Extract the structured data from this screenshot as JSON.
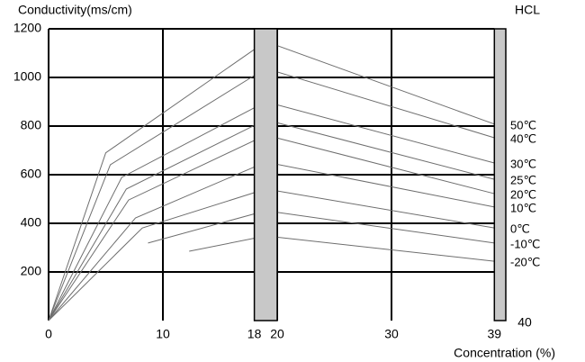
{
  "chart_data": {
    "type": "line",
    "title": "Conductivity(ms/cm)",
    "subtitle": "HCL",
    "x_label": "Concentration (%)",
    "annotation": "40",
    "xlim": [
      0,
      40
    ],
    "xticks": [
      0,
      10,
      18,
      20,
      30,
      39
    ],
    "ylim": [
      0,
      1200
    ],
    "yticks": [
      200,
      400,
      600,
      800,
      1000,
      1200
    ],
    "grid_x": [
      10,
      20,
      30
    ],
    "grid": true,
    "bands": [
      [
        18,
        20
      ],
      [
        39,
        40
      ]
    ],
    "band_color": "#c8c8c8",
    "series": [
      {
        "name": "50℃",
        "color": "#6e6e6e",
        "x": [
          0,
          5,
          19,
          39
        ],
        "values": [
          0,
          690,
          1148,
          808
        ]
      },
      {
        "name": "40℃",
        "color": "#6e6e6e",
        "x": [
          0,
          5.4,
          19,
          39
        ],
        "values": [
          0,
          641,
          1037,
          752
        ]
      },
      {
        "name": "30℃",
        "color": "#6e6e6e",
        "x": [
          0,
          6.4,
          19,
          39
        ],
        "values": [
          0,
          589,
          900,
          648
        ]
      },
      {
        "name": "25℃",
        "color": "#6e6e6e",
        "x": [
          0,
          6.8,
          19,
          39
        ],
        "values": [
          0,
          541,
          826,
          581
        ]
      },
      {
        "name": "20℃",
        "color": "#6e6e6e",
        "x": [
          0,
          7,
          19,
          39
        ],
        "values": [
          0,
          496,
          763,
          522
        ]
      },
      {
        "name": "10℃",
        "color": "#6e6e6e",
        "x": [
          0,
          7.6,
          19,
          39
        ],
        "values": [
          0,
          422,
          652,
          467
        ]
      },
      {
        "name": "0℃",
        "color": "#6e6e6e",
        "x": [
          0,
          8.2,
          19,
          39
        ],
        "values": [
          0,
          381,
          541,
          381
        ]
      },
      {
        "name": "-10℃",
        "color": "#6e6e6e",
        "x": [
          8.7,
          19,
          39
        ],
        "values": [
          319,
          452,
          319
        ]
      },
      {
        "name": "-20℃",
        "color": "#6e6e6e",
        "x": [
          12.3,
          19,
          39
        ],
        "values": [
          285,
          348,
          244
        ]
      }
    ]
  }
}
